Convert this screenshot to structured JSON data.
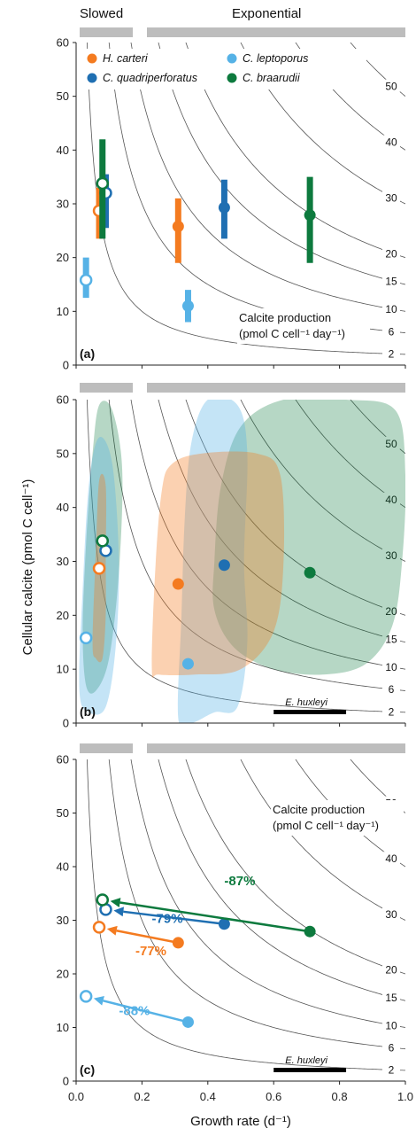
{
  "header": {
    "slowed_label": "Slowed",
    "exponential_label": "Exponential"
  },
  "axes": {
    "xlabel": "Growth rate (d⁻¹)",
    "ylabel": "Cellular calcite (pmol C cell⁻¹)",
    "xlim": [
      0,
      1.0
    ],
    "ylim": [
      0,
      60
    ],
    "xticks": [
      "0.0",
      "0.2",
      "0.4",
      "0.6",
      "0.8",
      "1.0"
    ],
    "yticks": [
      "0",
      "10",
      "20",
      "30",
      "40",
      "50",
      "60"
    ]
  },
  "isoline_values": [
    2,
    6,
    10,
    15,
    20,
    30,
    40,
    50
  ],
  "isoline_labels": [
    "2",
    "6",
    "10",
    "15",
    "20",
    "30",
    "40",
    "50"
  ],
  "colors": {
    "H. carteri": "#f47b20",
    "C. quadriperforatus": "#1f6fb2",
    "C. leptoporus": "#56b2e6",
    "C. braarudii": "#0d7a3e"
  },
  "legend": [
    "H. carteri",
    "C. quadriperforatus",
    "C. leptoporus",
    "C. braarudii"
  ],
  "calcite_label_line1": "Calcite production",
  "calcite_label_line2": "(pmol C cell⁻¹ day⁻¹)",
  "ehux_label": "E. huxleyi",
  "ehux_range": [
    0.6,
    0.82
  ],
  "panels": [
    {
      "id": "a",
      "label": "(a)",
      "has_legend": true,
      "has_calcite_label": true,
      "has_ehux": false,
      "has_xticks": false
    },
    {
      "id": "b",
      "label": "(b)",
      "has_legend": false,
      "has_calcite_label": false,
      "has_ehux": true,
      "has_xticks": false
    },
    {
      "id": "c",
      "label": "(c)",
      "has_legend": false,
      "has_calcite_label": true,
      "has_ehux": true,
      "has_xticks": true
    }
  ],
  "chart_data": {
    "type": "scatter",
    "x_unit": "Growth rate (d⁻¹)",
    "y_unit": "Cellular calcite (pmol C cell⁻¹)",
    "series": [
      {
        "name": "H. carteri",
        "slowed": {
          "x": 0.07,
          "y": 28.7,
          "y_range": [
            23.5,
            33
          ]
        },
        "exponential": {
          "x": 0.31,
          "y": 25.8,
          "y_range": [
            19,
            31
          ]
        },
        "percent_change": "-77%"
      },
      {
        "name": "C. quadriperforatus",
        "slowed": {
          "x": 0.09,
          "y": 32,
          "y_range": [
            25.5,
            35.5
          ]
        },
        "exponential": {
          "x": 0.45,
          "y": 29.3,
          "y_range": [
            23.5,
            34.5
          ]
        },
        "percent_change": "-79%"
      },
      {
        "name": "C. leptoporus",
        "slowed": {
          "x": 0.03,
          "y": 15.8,
          "y_range": [
            12.5,
            20
          ]
        },
        "exponential": {
          "x": 0.34,
          "y": 11,
          "y_range": [
            8,
            14
          ]
        },
        "percent_change": "-88%"
      },
      {
        "name": "C. braarudii",
        "slowed": {
          "x": 0.08,
          "y": 33.8,
          "y_range": [
            23.5,
            42
          ]
        },
        "exponential": {
          "x": 0.71,
          "y": 27.9,
          "y_range": [
            19,
            35
          ]
        },
        "percent_change": "-87%"
      }
    ],
    "regions_panel_b": [
      {
        "name": "C. braarudii",
        "slowed": [
          [
            0.02,
            17
          ],
          [
            0.03,
            33
          ],
          [
            0.05,
            50
          ],
          [
            0.07,
            59
          ],
          [
            0.11,
            58
          ],
          [
            0.14,
            47
          ],
          [
            0.13,
            28
          ],
          [
            0.1,
            12
          ],
          [
            0.06,
            6
          ],
          [
            0.03,
            7
          ]
        ],
        "exponential": [
          [
            0.42,
            30
          ],
          [
            0.44,
            44
          ],
          [
            0.5,
            55
          ],
          [
            0.63,
            60
          ],
          [
            0.82,
            60
          ],
          [
            0.97,
            58
          ],
          [
            1.0,
            46
          ],
          [
            0.99,
            30
          ],
          [
            0.96,
            18
          ],
          [
            0.88,
            11
          ],
          [
            0.75,
            9
          ],
          [
            0.6,
            10
          ],
          [
            0.48,
            14
          ],
          [
            0.42,
            21
          ]
        ]
      },
      {
        "name": "C. leptoporus",
        "slowed": [
          [
            0.01,
            6
          ],
          [
            0.02,
            25
          ],
          [
            0.04,
            45
          ],
          [
            0.07,
            53
          ],
          [
            0.11,
            48
          ],
          [
            0.13,
            30
          ],
          [
            0.12,
            14
          ],
          [
            0.09,
            3
          ],
          [
            0.04,
            2
          ]
        ],
        "exponential": [
          [
            0.31,
            1
          ],
          [
            0.32,
            20
          ],
          [
            0.33,
            38
          ],
          [
            0.35,
            52
          ],
          [
            0.4,
            60
          ],
          [
            0.49,
            59
          ],
          [
            0.52,
            50
          ],
          [
            0.51,
            30
          ],
          [
            0.52,
            15
          ],
          [
            0.49,
            3
          ],
          [
            0.42,
            2
          ],
          [
            0.35,
            0
          ]
        ]
      },
      {
        "name": "H. carteri",
        "slowed": [
          [
            0.05,
            15
          ],
          [
            0.06,
            32
          ],
          [
            0.07,
            45
          ],
          [
            0.09,
            44
          ],
          [
            0.09,
            30
          ],
          [
            0.09,
            20
          ],
          [
            0.08,
            12
          ],
          [
            0.06,
            12
          ]
        ],
        "exponential": [
          [
            0.23,
            10
          ],
          [
            0.24,
            28
          ],
          [
            0.26,
            43
          ],
          [
            0.29,
            48
          ],
          [
            0.38,
            50
          ],
          [
            0.55,
            50
          ],
          [
            0.62,
            46
          ],
          [
            0.63,
            30
          ],
          [
            0.6,
            17
          ],
          [
            0.5,
            10
          ],
          [
            0.36,
            9
          ],
          [
            0.25,
            9
          ]
        ]
      }
    ]
  }
}
